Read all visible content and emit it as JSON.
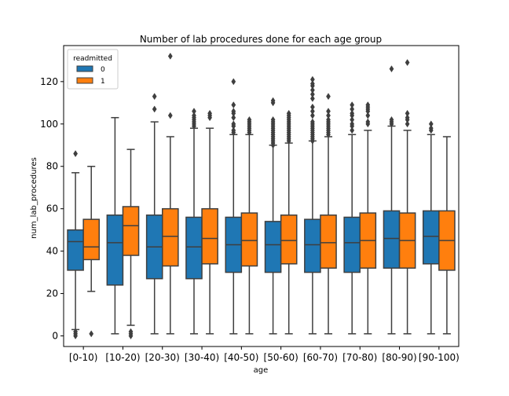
{
  "chart_data": {
    "type": "box",
    "title": "Number of lab procedures done for each age group",
    "xlabel": "age",
    "ylabel": "num_lab_procedures",
    "ylim": [
      -5,
      137
    ],
    "yticks": [
      0,
      20,
      40,
      60,
      80,
      100,
      120
    ],
    "categories": [
      "[0-10)",
      "[10-20)",
      "[20-30)",
      "[30-40)",
      "[40-50)",
      "[50-60)",
      "[60-70)",
      "[70-80)",
      "[80-90)",
      "[90-100)"
    ],
    "legend": {
      "title": "readmitted",
      "position": "top-left"
    },
    "series": [
      {
        "name": "0",
        "color": "#1f77b4",
        "boxes": [
          {
            "whislo": 3,
            "q1": 31,
            "med": 44.5,
            "q3": 50,
            "whishi": 77,
            "fliers": [
              0,
              1,
              2,
              86
            ]
          },
          {
            "whislo": 1,
            "q1": 24,
            "med": 44,
            "q3": 57,
            "whishi": 103,
            "fliers": []
          },
          {
            "whislo": 1,
            "q1": 27,
            "med": 42,
            "q3": 57,
            "whishi": 101,
            "fliers": [
              107,
              113
            ]
          },
          {
            "whislo": 1,
            "q1": 27,
            "med": 42,
            "q3": 56,
            "whishi": 98,
            "fliers": [
              99,
              100,
              101,
              102,
              103,
              104,
              106
            ]
          },
          {
            "whislo": 1,
            "q1": 30,
            "med": 43,
            "q3": 56,
            "whishi": 95,
            "fliers": [
              96,
              97,
              99,
              100,
              103,
              105,
              106,
              109,
              120
            ]
          },
          {
            "whislo": 1,
            "q1": 30,
            "med": 43,
            "q3": 54,
            "whishi": 90,
            "fliers": [
              90,
              91,
              92,
              93,
              94,
              95,
              96,
              97,
              98,
              99,
              100,
              101,
              102,
              110,
              111
            ]
          },
          {
            "whislo": 1,
            "q1": 30,
            "med": 43,
            "q3": 55,
            "whishi": 92,
            "fliers": [
              92,
              93,
              94,
              95,
              96,
              97,
              98,
              99,
              100,
              101,
              104,
              106,
              108,
              112,
              114,
              116,
              118,
              119,
              121
            ]
          },
          {
            "whislo": 1,
            "q1": 30,
            "med": 44,
            "q3": 56,
            "whishi": 95,
            "fliers": [
              97,
              99,
              100,
              102,
              104,
              105,
              107,
              109
            ]
          },
          {
            "whislo": 1,
            "q1": 32,
            "med": 46,
            "q3": 59,
            "whishi": 99,
            "fliers": [
              100,
              101,
              102,
              126
            ]
          },
          {
            "whislo": 1,
            "q1": 34,
            "med": 47,
            "q3": 59,
            "whishi": 95,
            "fliers": [
              97,
              98,
              100
            ]
          }
        ]
      },
      {
        "name": "1",
        "color": "#ff7f0e",
        "boxes": [
          {
            "whislo": 21,
            "q1": 36,
            "med": 42,
            "q3": 55,
            "whishi": 80,
            "fliers": [
              1
            ]
          },
          {
            "whislo": 5,
            "q1": 38,
            "med": 52,
            "q3": 61,
            "whishi": 88,
            "fliers": [
              0,
              1,
              2
            ]
          },
          {
            "whislo": 1,
            "q1": 33,
            "med": 47,
            "q3": 60,
            "whishi": 94,
            "fliers": [
              104,
              132
            ]
          },
          {
            "whislo": 1,
            "q1": 34,
            "med": 46,
            "q3": 60,
            "whishi": 98,
            "fliers": [
              103,
              104,
              105
            ]
          },
          {
            "whislo": 1,
            "q1": 33,
            "med": 45,
            "q3": 58,
            "whishi": 95,
            "fliers": [
              96,
              97,
              98,
              99,
              100,
              101,
              102
            ]
          },
          {
            "whislo": 1,
            "q1": 34,
            "med": 45,
            "q3": 57,
            "whishi": 91,
            "fliers": [
              92,
              93,
              94,
              95,
              96,
              97,
              98,
              99,
              100,
              101,
              102,
              103,
              104,
              105
            ]
          },
          {
            "whislo": 1,
            "q1": 32,
            "med": 44,
            "q3": 57,
            "whishi": 94,
            "fliers": [
              95,
              96,
              97,
              98,
              99,
              100,
              101,
              102,
              104,
              106,
              113
            ]
          },
          {
            "whislo": 1,
            "q1": 32,
            "med": 45,
            "q3": 58,
            "whishi": 97,
            "fliers": [
              100,
              101,
              104,
              106,
              107,
              108,
              109
            ]
          },
          {
            "whislo": 1,
            "q1": 32,
            "med": 45,
            "q3": 58,
            "whishi": 97,
            "fliers": [
              100,
              102,
              103,
              105,
              129
            ]
          },
          {
            "whislo": 1,
            "q1": 31,
            "med": 45,
            "q3": 59,
            "whishi": 94,
            "fliers": []
          }
        ]
      }
    ]
  }
}
